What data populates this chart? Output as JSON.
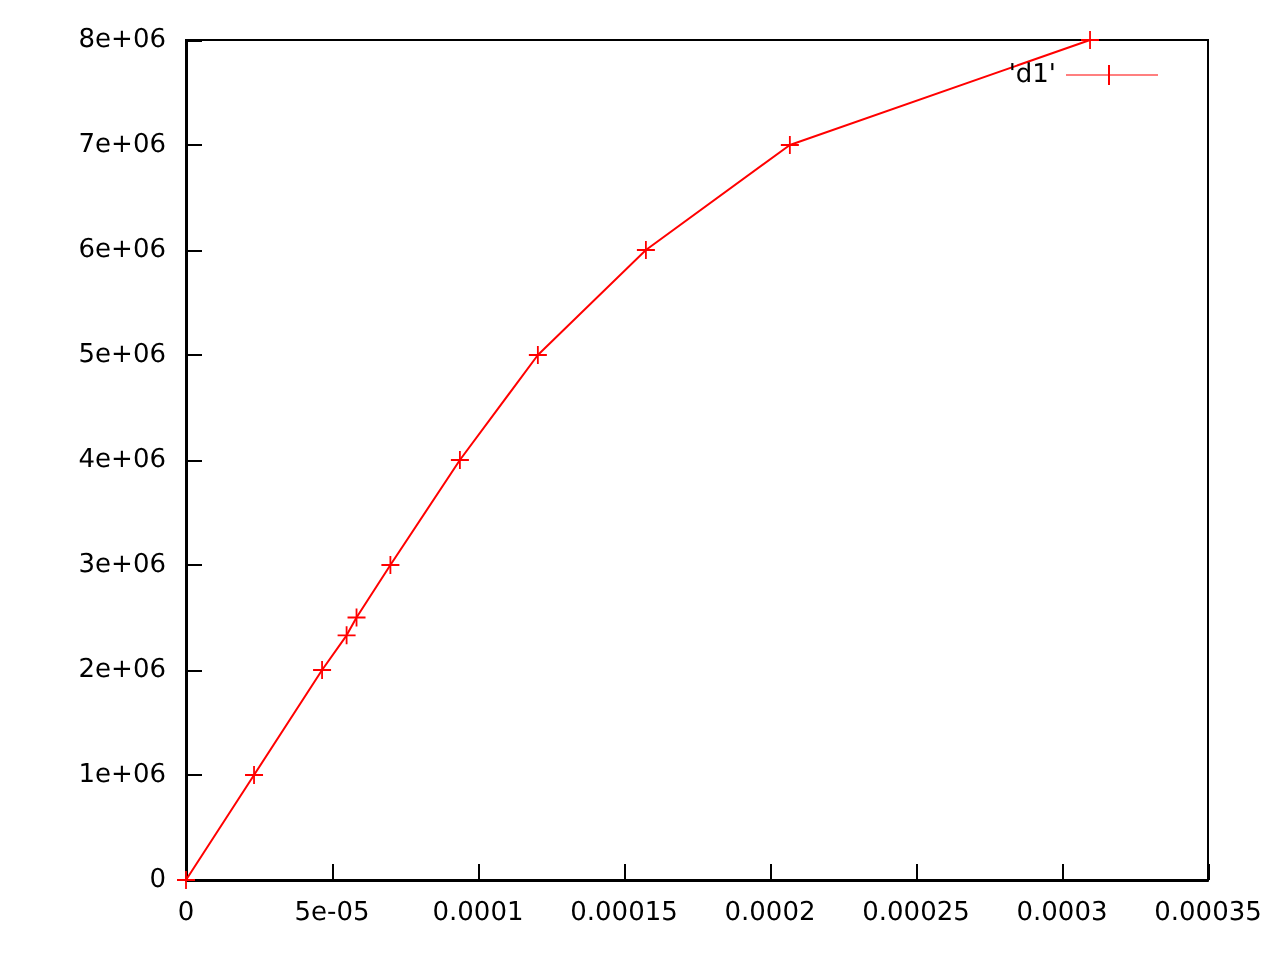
{
  "chart_data": {
    "type": "line",
    "x": [
      0,
      2.33e-05,
      4.66e-05,
      5.5e-05,
      5.84e-05,
      7e-05,
      9.38e-05,
      0.0001205,
      0.0001575,
      0.0002068,
      0.0003096
    ],
    "series": [
      {
        "name": "'d1'",
        "color": "#ff0000",
        "values": [
          0,
          1000000,
          2000000,
          2330000,
          2500000,
          3000000,
          4000000,
          5000000,
          6000000,
          7000000,
          8000000
        ]
      }
    ],
    "xlim": [
      0,
      0.00035
    ],
    "xticks": [
      0,
      {
        "value": 5e-05,
        "label": "5e-05"
      },
      {
        "value": 0.0001,
        "label": "0.0001"
      },
      {
        "value": 0.00015,
        "label": "0.00015"
      },
      {
        "value": 0.0002,
        "label": "0.0002"
      },
      {
        "value": 0.00025,
        "label": "0.00025"
      },
      {
        "value": 0.0003,
        "label": "0.0003"
      },
      {
        "value": 0.00035,
        "label": "0.00035"
      }
    ],
    "ylim": [
      0,
      8000000
    ],
    "yticks": [
      0,
      {
        "value": 1000000,
        "label": "1e+06"
      },
      {
        "value": 2000000,
        "label": "2e+06"
      },
      {
        "value": 3000000,
        "label": "3e+06"
      },
      {
        "value": 4000000,
        "label": "4e+06"
      },
      {
        "value": 5000000,
        "label": "5e+06"
      },
      {
        "value": 6000000,
        "label": "6e+06"
      },
      {
        "value": 7000000,
        "label": "7e+06"
      },
      {
        "value": 8000000,
        "label": "8e+06"
      }
    ],
    "grid": false,
    "legend": "top right",
    "marker": "cross",
    "line_style": "solid"
  }
}
